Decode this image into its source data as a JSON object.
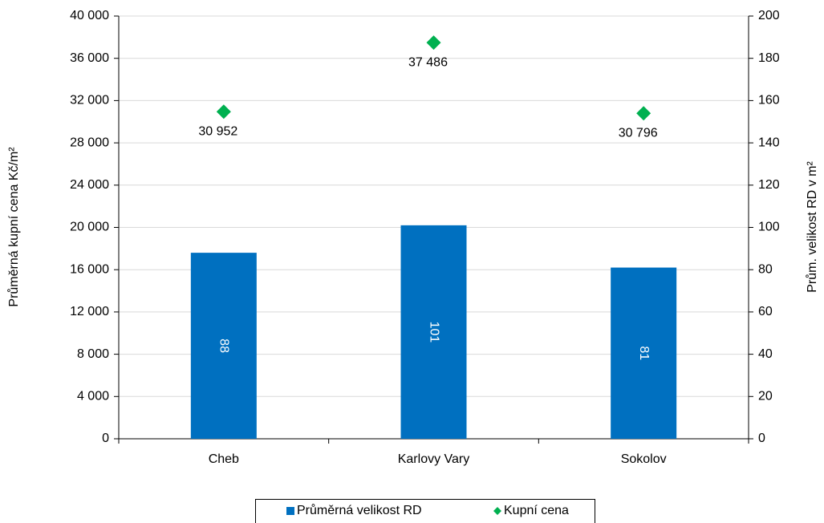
{
  "chart_data": {
    "type": "bar",
    "categories": [
      "Cheb",
      "Karlovy Vary",
      "Sokolov"
    ],
    "series": [
      {
        "name": "Průměrná velikost RD",
        "color": "#0070c0",
        "axis": "y2",
        "values": [
          88,
          101,
          81
        ]
      },
      {
        "name": "Kupní cena",
        "color": "#00b050",
        "type": "scatter",
        "values": [
          30952,
          37486,
          30796
        ],
        "value_labels": [
          "30 952",
          "37 486",
          "30 796"
        ]
      }
    ],
    "ylabel": "Průměrná kupní cena Kč/m²",
    "y2label": "Prům. velikost RD v m²",
    "ylim": [
      0,
      40000
    ],
    "yticks": [
      0,
      {
        "value": 4000,
        "label": "4 000"
      },
      {
        "value": 8000,
        "label": "8 000"
      },
      {
        "value": 12000,
        "label": "12 000"
      },
      {
        "value": 16000,
        "label": "16 000"
      },
      {
        "value": 20000,
        "label": "20 000"
      },
      {
        "value": 24000,
        "label": "24 000"
      },
      {
        "value": 28000,
        "label": "28 000"
      },
      {
        "value": 32000,
        "label": "32 000"
      },
      {
        "value": 36000,
        "label": "36 000"
      },
      {
        "value": 40000,
        "label": "40 000"
      }
    ],
    "y2lim": [
      0,
      200
    ],
    "y2ticks": [
      0,
      20,
      40,
      60,
      80,
      100,
      120,
      140,
      160,
      180,
      200
    ],
    "grid": true,
    "legend": "bottom"
  }
}
